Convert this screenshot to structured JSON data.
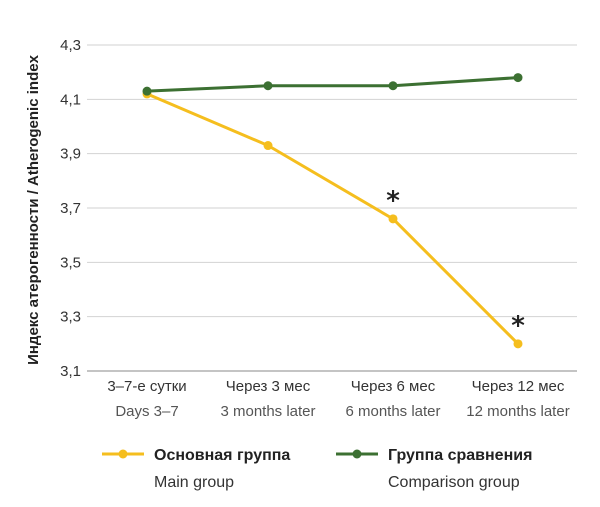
{
  "chart_data": {
    "type": "line",
    "ylabel": "Индекс атерогенности / Atherogenic index",
    "ylim": [
      3.1,
      4.3
    ],
    "yticks": [
      "4,3",
      "4,1",
      "3,9",
      "3,7",
      "3,5",
      "3,3",
      "3,1"
    ],
    "ytick_values": [
      4.3,
      4.1,
      3.9,
      3.7,
      3.5,
      3.3,
      3.1
    ],
    "grid": true,
    "legend_position": "bottom",
    "categories": [
      {
        "ru": "3–7-е сутки",
        "en": "Days 3–7"
      },
      {
        "ru": "Через 3 мес",
        "en": "3 months later"
      },
      {
        "ru": "Через 6 мес",
        "en": "6 months later"
      },
      {
        "ru": "Через 12 мес",
        "en": "12 months later"
      }
    ],
    "series": [
      {
        "name_ru": "Основная группа",
        "name_en": "Main group",
        "color": "#F5BE1E",
        "values": [
          4.12,
          3.93,
          3.66,
          3.2
        ]
      },
      {
        "name_ru": "Группа сравнения",
        "name_en": "Comparison group",
        "color": "#3C7032",
        "values": [
          4.13,
          4.15,
          4.15,
          4.18
        ]
      }
    ],
    "annotations": [
      {
        "text": "*",
        "series": 0,
        "category": 2
      },
      {
        "text": "*",
        "series": 0,
        "category": 3
      }
    ]
  }
}
